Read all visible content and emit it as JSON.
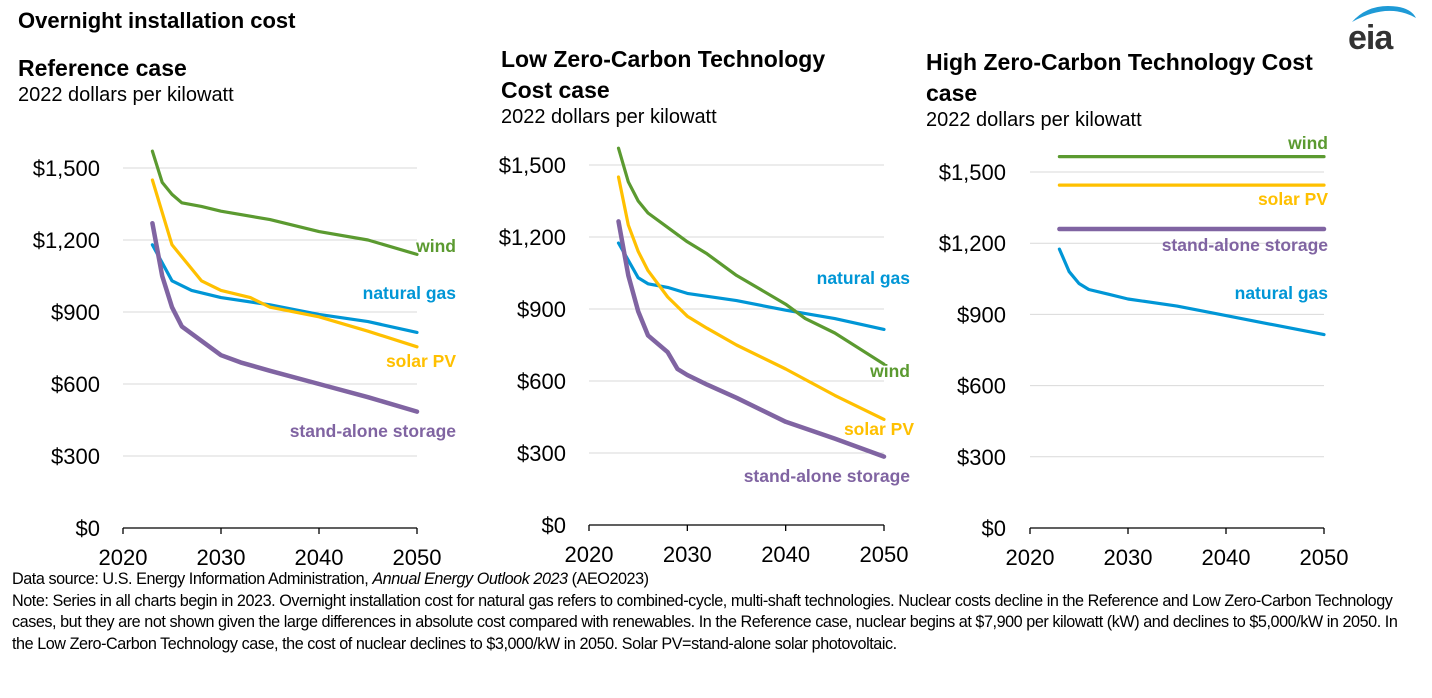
{
  "title": "Overnight installation cost",
  "logo_text": "eia",
  "colors": {
    "wind": "#5b9a30",
    "solar PV": "#ffc000",
    "natural gas": "#0096d6",
    "stand-alone storage": "#8064a2",
    "grid": "#d9d9d9",
    "axis": "#000000"
  },
  "chart_data": [
    {
      "type": "line",
      "title": "Reference case",
      "ylabel": "2022 dollars per kilowatt",
      "xlim": [
        2020,
        2050
      ],
      "ylim": [
        0,
        1500
      ],
      "xticks": [
        "2020",
        "2030",
        "2040",
        "2050"
      ],
      "yticks": [
        "$0",
        "$300",
        "$600",
        "$900",
        "$1,200",
        "$1,500"
      ],
      "grid": true,
      "series": [
        {
          "name": "wind",
          "x": [
            2023,
            2024,
            2025,
            2026,
            2028,
            2030,
            2035,
            2040,
            2045,
            2050
          ],
          "y": [
            1570,
            1440,
            1390,
            1355,
            1340,
            1320,
            1285,
            1235,
            1200,
            1140
          ]
        },
        {
          "name": "natural gas",
          "x": [
            2023,
            2025,
            2027,
            2030,
            2035,
            2040,
            2045,
            2050
          ],
          "y": [
            1180,
            1030,
            990,
            960,
            930,
            890,
            860,
            815
          ]
        },
        {
          "name": "solar PV",
          "x": [
            2023,
            2025,
            2027,
            2028,
            2030,
            2033,
            2035,
            2040,
            2045,
            2050
          ],
          "y": [
            1450,
            1180,
            1080,
            1030,
            990,
            960,
            920,
            880,
            820,
            755
          ]
        },
        {
          "name": "stand-alone storage",
          "x": [
            2023,
            2024,
            2025,
            2026,
            2028,
            2030,
            2032,
            2035,
            2040,
            2045,
            2050
          ],
          "y": [
            1270,
            1050,
            920,
            840,
            780,
            720,
            690,
            655,
            600,
            545,
            485
          ]
        }
      ]
    },
    {
      "type": "line",
      "title": "Low Zero-Carbon Technology Cost case",
      "ylabel": "2022 dollars per kilowatt",
      "xlim": [
        2020,
        2050
      ],
      "ylim": [
        0,
        1500
      ],
      "xticks": [
        "2020",
        "2030",
        "2040",
        "2050"
      ],
      "yticks": [
        "$0",
        "$300",
        "$600",
        "$900",
        "$1,200",
        "$1,500"
      ],
      "grid": true,
      "series": [
        {
          "name": "natural gas",
          "x": [
            2023,
            2025,
            2026,
            2028,
            2030,
            2035,
            2040,
            2045,
            2050
          ],
          "y": [
            1175,
            1030,
            1005,
            990,
            965,
            935,
            895,
            860,
            815
          ]
        },
        {
          "name": "wind",
          "x": [
            2023,
            2024,
            2025,
            2026,
            2028,
            2030,
            2032,
            2035,
            2040,
            2042,
            2045,
            2050
          ],
          "y": [
            1570,
            1430,
            1350,
            1300,
            1240,
            1180,
            1130,
            1040,
            920,
            860,
            800,
            670
          ]
        },
        {
          "name": "solar PV",
          "x": [
            2023,
            2024,
            2025,
            2026,
            2028,
            2030,
            2032,
            2035,
            2040,
            2045,
            2050
          ],
          "y": [
            1450,
            1250,
            1140,
            1060,
            950,
            870,
            820,
            750,
            650,
            540,
            440
          ]
        },
        {
          "name": "stand-alone storage",
          "x": [
            2023,
            2024,
            2025,
            2026,
            2028,
            2029,
            2030,
            2032,
            2035,
            2040,
            2045,
            2050
          ],
          "y": [
            1265,
            1040,
            890,
            790,
            720,
            650,
            625,
            585,
            530,
            430,
            360,
            285
          ]
        }
      ]
    },
    {
      "type": "line",
      "title": "High Zero-Carbon Technology Cost case",
      "ylabel": "2022 dollars per kilowatt",
      "xlim": [
        2020,
        2050
      ],
      "ylim": [
        0,
        1500
      ],
      "xticks": [
        "2020",
        "2030",
        "2040",
        "2050"
      ],
      "yticks": [
        "$0",
        "$300",
        "$600",
        "$900",
        "$1,200",
        "$1,500"
      ],
      "grid": true,
      "series": [
        {
          "name": "wind",
          "x": [
            2023,
            2050
          ],
          "y": [
            1565,
            1565
          ]
        },
        {
          "name": "solar PV",
          "x": [
            2023,
            2050
          ],
          "y": [
            1445,
            1445
          ]
        },
        {
          "name": "stand-alone storage",
          "x": [
            2023,
            2050
          ],
          "y": [
            1260,
            1260
          ]
        },
        {
          "name": "natural gas",
          "x": [
            2023,
            2024,
            2025,
            2026,
            2028,
            2030,
            2035,
            2040,
            2045,
            2050
          ],
          "y": [
            1175,
            1080,
            1030,
            1005,
            985,
            965,
            935,
            895,
            855,
            815
          ]
        }
      ]
    }
  ],
  "footer": {
    "source_prefix": "Data source: U.S. Energy Information Administration, ",
    "source_italic": "Annual Energy Outlook 2023",
    "source_suffix": " (AEO2023)",
    "note": "Note: Series in all charts begin in 2023. Overnight installation cost for natural gas refers to combined-cycle, multi-shaft technologies. Nuclear costs decline in the Reference and Low Zero-Carbon Technology cases, but they are not shown given the large differences in absolute cost compared with renewables. In the Reference case, nuclear begins at $7,900 per kilowatt (kW) and declines to $5,000/kW in 2050. In the Low Zero-Carbon Technology case, the cost of nuclear declines to $3,000/kW in 2050. Solar PV=stand-alone solar photovoltaic."
  }
}
